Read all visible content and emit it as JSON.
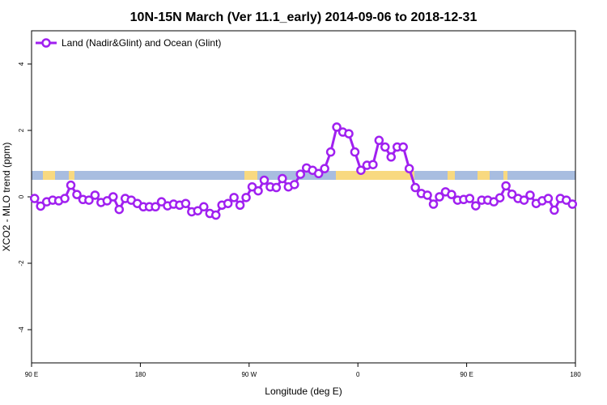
{
  "chart_data": {
    "type": "line",
    "title": "10N-15N March (Ver 11.1_early)   2014-09-06 to 2018-12-31",
    "xlabel": "Longitude (deg E)",
    "ylabel": "XCO2 - MLO trend (ppm)",
    "x": [
      92.5,
      97.5,
      102.5,
      107.5,
      112.5,
      117.5,
      122.5,
      127.5,
      132.5,
      137.5,
      142.5,
      147.5,
      152.5,
      157.5,
      162.5,
      167.5,
      172.5,
      177.5,
      182.5,
      187.5,
      192.5,
      197.5,
      202.5,
      207.5,
      212.5,
      217.5,
      222.5,
      227.5,
      232.5,
      237.5,
      242.5,
      247.5,
      252.5,
      257.5,
      262.5,
      267.5,
      272.5,
      277.5,
      282.5,
      287.5,
      292.5,
      297.5,
      302.5,
      307.5,
      312.5,
      317.5,
      322.5,
      327.5,
      332.5,
      337.5,
      342.5,
      347.5,
      352.5,
      357.5,
      362.5,
      367.5,
      372.5,
      377.5,
      382.5,
      387.5,
      392.5,
      397.5,
      402.5,
      407.5,
      412.5,
      417.5,
      422.5,
      427.5,
      432.5,
      437.5,
      442.5,
      447.5,
      452.5,
      457.5,
      462.5,
      467.5,
      472.5,
      477.5,
      482.5,
      487.5,
      492.5,
      497.5,
      502.5,
      507.5,
      512.5,
      517.5,
      522.5,
      527.5,
      532.5,
      537.5
    ],
    "series": [
      {
        "name": "Land (Nadir&Glint) and Ocean (Glint)",
        "color": "#a020f0",
        "values": [
          -0.05,
          -0.28,
          -0.15,
          -0.1,
          -0.12,
          -0.05,
          0.35,
          0.07,
          -0.08,
          -0.1,
          0.05,
          -0.17,
          -0.12,
          0.0,
          -0.38,
          -0.05,
          -0.1,
          -0.2,
          -0.3,
          -0.3,
          -0.3,
          -0.15,
          -0.27,
          -0.22,
          -0.25,
          -0.2,
          -0.45,
          -0.42,
          -0.3,
          -0.5,
          -0.55,
          -0.25,
          -0.2,
          -0.02,
          -0.25,
          -0.02,
          0.3,
          0.18,
          0.5,
          0.3,
          0.28,
          0.55,
          0.3,
          0.37,
          0.68,
          0.87,
          0.8,
          0.7,
          0.85,
          1.35,
          2.1,
          1.95,
          1.9,
          1.35,
          0.8,
          0.95,
          0.97,
          1.7,
          1.5,
          1.2,
          1.5,
          1.5,
          0.85,
          0.28,
          0.1,
          0.05,
          -0.22,
          0.0,
          0.15,
          0.07,
          -0.1,
          -0.08,
          -0.05,
          -0.27,
          -0.1,
          -0.1,
          -0.15,
          -0.03,
          0.33,
          0.08,
          -0.05,
          -0.1,
          0.05,
          -0.2,
          -0.12,
          -0.05,
          -0.4,
          -0.05,
          -0.1,
          -0.22
        ]
      }
    ],
    "xlim": [
      90,
      540
    ],
    "xticks": [
      {
        "value": 90,
        "label": "90 E"
      },
      {
        "value": 180,
        "label": "180"
      },
      {
        "value": 270,
        "label": "90 W"
      },
      {
        "value": 360,
        "label": "0"
      },
      {
        "value": 450,
        "label": "90 E"
      },
      {
        "value": 540,
        "label": "180"
      }
    ],
    "ylim": [
      -5,
      5
    ],
    "yticks": [
      -4,
      -2,
      0,
      2,
      4
    ],
    "legend": "top-left"
  }
}
